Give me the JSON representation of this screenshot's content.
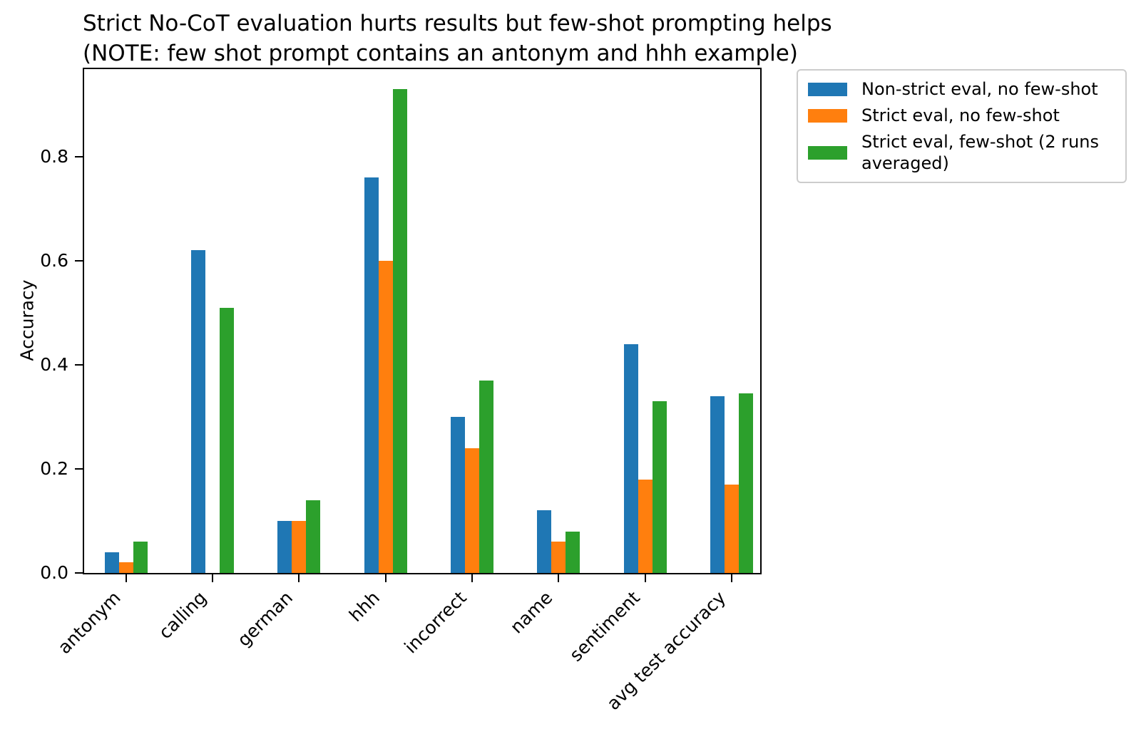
{
  "figure": {
    "title_line1": "Strict No-CoT evaluation hurts results but few-shot prompting helps",
    "title_line2": "(NOTE: few shot prompt contains an antonym and hhh example)"
  },
  "chart_data": {
    "type": "bar",
    "title": "Strict No-CoT evaluation hurts results but few-shot prompting helps\n(NOTE: few shot prompt contains an antonym and hhh example)",
    "xlabel": "",
    "ylabel": "Accuracy",
    "categories": [
      "antonym",
      "calling",
      "german",
      "hhh",
      "incorrect",
      "name",
      "sentiment",
      "avg test accuracy"
    ],
    "series": [
      {
        "name": "Non-strict eval, no few-shot",
        "display_label": "Non-strict eval, no few-shot",
        "color": "#1f77b4",
        "values": [
          0.04,
          0.62,
          0.1,
          0.76,
          0.3,
          0.12,
          0.44,
          0.34
        ]
      },
      {
        "name": "Strict eval, no few-shot",
        "display_label": "Strict eval, no few-shot",
        "color": "#ff7f0e",
        "values": [
          0.02,
          0.0,
          0.1,
          0.6,
          0.24,
          0.06,
          0.18,
          0.17
        ]
      },
      {
        "name": "Strict eval, few-shot (2 runs averaged)",
        "display_label": "Strict eval, few-shot (2 runs\naveraged)",
        "color": "#2ca02c",
        "values": [
          0.06,
          0.51,
          0.14,
          0.93,
          0.37,
          0.08,
          0.33,
          0.345
        ]
      }
    ],
    "yticks": [
      "0.0",
      "0.2",
      "0.4",
      "0.6",
      "0.8"
    ],
    "ytick_values": [
      0.0,
      0.2,
      0.4,
      0.6,
      0.8
    ],
    "ylim": [
      0.0,
      0.971
    ],
    "grid": false,
    "legend_position": "upper right, outside axes",
    "bar_color_names": {
      "blue": "#1f77b4",
      "orange": "#ff7f0e",
      "green": "#2ca02c"
    }
  }
}
